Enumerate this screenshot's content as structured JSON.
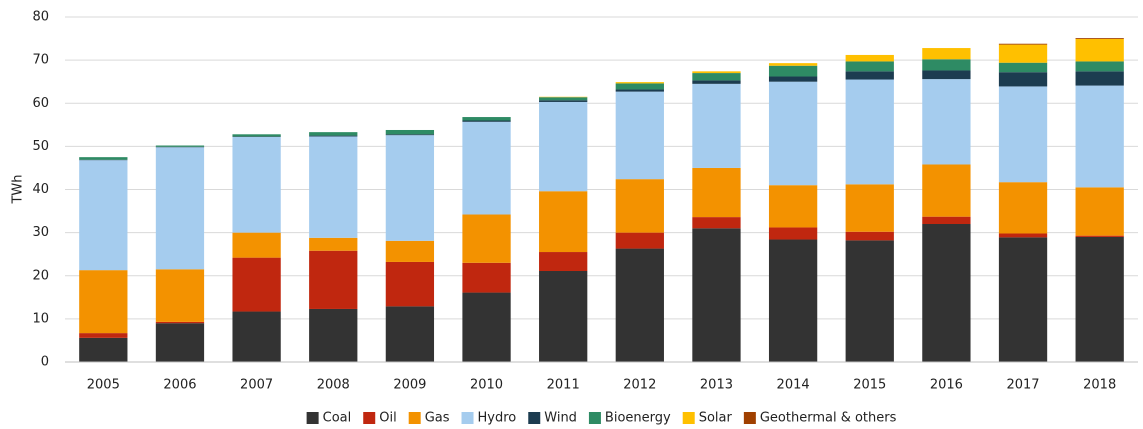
{
  "chart_data": {
    "type": "stacked_bar",
    "y_label": "TWh",
    "categories": [
      "2005",
      "2006",
      "2007",
      "2008",
      "2009",
      "2010",
      "2011",
      "2012",
      "2013",
      "2014",
      "2015",
      "2016",
      "2017",
      "2018"
    ],
    "series": [
      {
        "name": "Coal",
        "color": "#333333",
        "values": [
          5.6,
          9.0,
          11.7,
          12.3,
          12.9,
          16.1,
          21.1,
          26.3,
          31.0,
          28.4,
          28.2,
          32.0,
          28.9,
          29.0
        ]
      },
      {
        "name": "Oil",
        "color": "#c0270f",
        "values": [
          1.1,
          0.3,
          12.5,
          13.5,
          10.3,
          6.9,
          4.4,
          3.7,
          2.6,
          2.8,
          2.0,
          1.7,
          0.9,
          0.3
        ]
      },
      {
        "name": "Gas",
        "color": "#f39200",
        "values": [
          14.6,
          12.2,
          5.8,
          3.0,
          4.9,
          11.2,
          14.1,
          12.4,
          11.4,
          9.8,
          11.0,
          12.1,
          11.9,
          11.2
        ]
      },
      {
        "name": "Hydro",
        "color": "#a5ccee",
        "values": [
          25.5,
          28.3,
          22.2,
          23.5,
          24.5,
          21.5,
          20.7,
          20.3,
          19.5,
          24.0,
          24.3,
          19.8,
          22.2,
          23.6
        ]
      },
      {
        "name": "Wind",
        "color": "#1c3c50",
        "values": [
          0.1,
          0.1,
          0.1,
          0.2,
          0.2,
          0.3,
          0.4,
          0.5,
          0.8,
          1.2,
          1.9,
          2.0,
          3.3,
          3.3
        ]
      },
      {
        "name": "Bioenergy",
        "color": "#2e8b64",
        "values": [
          0.6,
          0.3,
          0.5,
          0.8,
          1.0,
          0.8,
          0.7,
          1.4,
          1.7,
          2.5,
          2.3,
          2.6,
          2.2,
          2.3
        ]
      },
      {
        "name": "Solar",
        "color": "#ffc000",
        "values": [
          0,
          0,
          0,
          0,
          0,
          0,
          0.1,
          0.3,
          0.4,
          0.6,
          1.5,
          2.6,
          4.2,
          5.2
        ]
      },
      {
        "name": "Geothermal & others",
        "color": "#a04000",
        "values": [
          0,
          0,
          0,
          0,
          0,
          0,
          0,
          0,
          0,
          0,
          0,
          0,
          0.2,
          0.2
        ]
      }
    ],
    "ylim": [
      0,
      80
    ],
    "yticks": [
      0,
      10,
      20,
      30,
      40,
      50,
      60,
      70,
      80
    ],
    "grid": true,
    "legend": "bottom"
  }
}
